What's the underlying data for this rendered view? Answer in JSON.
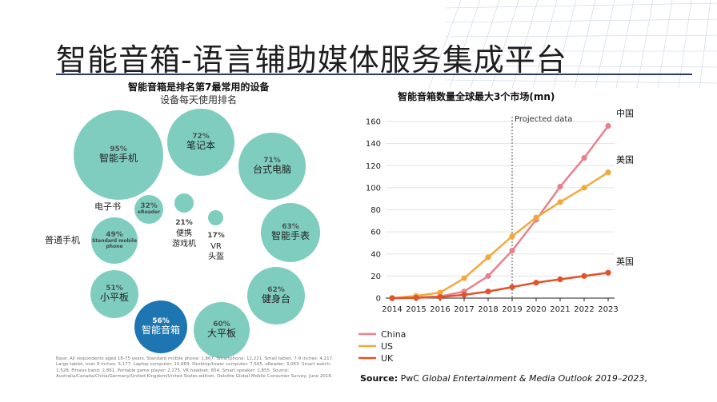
{
  "slide": {
    "title": "智能音箱-语言辅助媒体服务集成平台"
  },
  "left_panel": {
    "title": "智能音箱是排名第7最常用的设备",
    "subtitle": "设备每天使用排名",
    "bubbles": [
      {
        "pct": "95%",
        "label": "智能手机"
      },
      {
        "pct": "72%",
        "label": "笔记本"
      },
      {
        "pct": "71%",
        "label": "台式电脑"
      },
      {
        "pct": "63%",
        "label": "智能手表"
      },
      {
        "pct": "62%",
        "label": "健身台"
      },
      {
        "pct": "60%",
        "label": "大平板"
      },
      {
        "pct": "56%",
        "label": "智能音箱"
      },
      {
        "pct": "51%",
        "label": "小平板"
      },
      {
        "pct": "49%",
        "label_en": "Standard mobile phone"
      },
      {
        "pct": "32%",
        "label_en": "eReader"
      },
      {
        "pct": "21%",
        "label": "便携\n游戏机"
      },
      {
        "pct": "17%",
        "label": "VR\n头盔"
      }
    ],
    "side_labels": {
      "ereader": "电子书",
      "mobile": "普通手机"
    },
    "base_note": "Base: All respondents aged 18-75 years. Standard mobile phone: 1,867. Smartphone: 12,221. Small tablet, 7-9 inches: 4,217. Large tablet, over 9 inches: 5,177. Laptop computer: 10,869. Desktop/tower computer: 7,565. eReader: 3,063. Smart watch: 1,528. Fitness band: 2,861. Portable game player: 2,275. VR headset: 854. Smart speaker: 1,855. Source: Australia/Canada/China/Germany/United Kingdom/United States edition, Deloitte Global Mobile Consumer Survey, June 2018."
  },
  "right_panel": {
    "title": "智能音箱数量全球最大3个市场(mn)",
    "source_prefix": "Source:",
    "source_text": " PwC ",
    "source_italic": "Global Entertainment & Media Outlook 2019–2023",
    "source_suffix": ","
  },
  "chart_data": {
    "type": "line",
    "title": "智能音箱数量全球最大3个市场(mn)",
    "x": [
      2014,
      2015,
      2016,
      2017,
      2018,
      2019,
      2020,
      2021,
      2022,
      2023
    ],
    "ylim": [
      0,
      160
    ],
    "yticks": [
      0,
      20,
      40,
      60,
      80,
      100,
      120,
      140,
      160
    ],
    "grid": "horizontal",
    "legend_position": "bottom-left",
    "annotation": {
      "x": 2019,
      "label": "Projected data"
    },
    "series": [
      {
        "name": "China",
        "end_label": "中国",
        "color": "#e8818d",
        "values": [
          0,
          0.5,
          1.5,
          6,
          20,
          43,
          71,
          101,
          127,
          156
        ]
      },
      {
        "name": "US",
        "end_label": "美国",
        "color": "#f2a93b",
        "values": [
          0,
          2,
          5,
          18,
          37,
          56,
          73,
          87,
          100,
          114
        ]
      },
      {
        "name": "UK",
        "end_label": "英国",
        "color": "#e3522a",
        "values": [
          0,
          0.3,
          1,
          3,
          6,
          10,
          14,
          17,
          20,
          23
        ]
      }
    ]
  }
}
